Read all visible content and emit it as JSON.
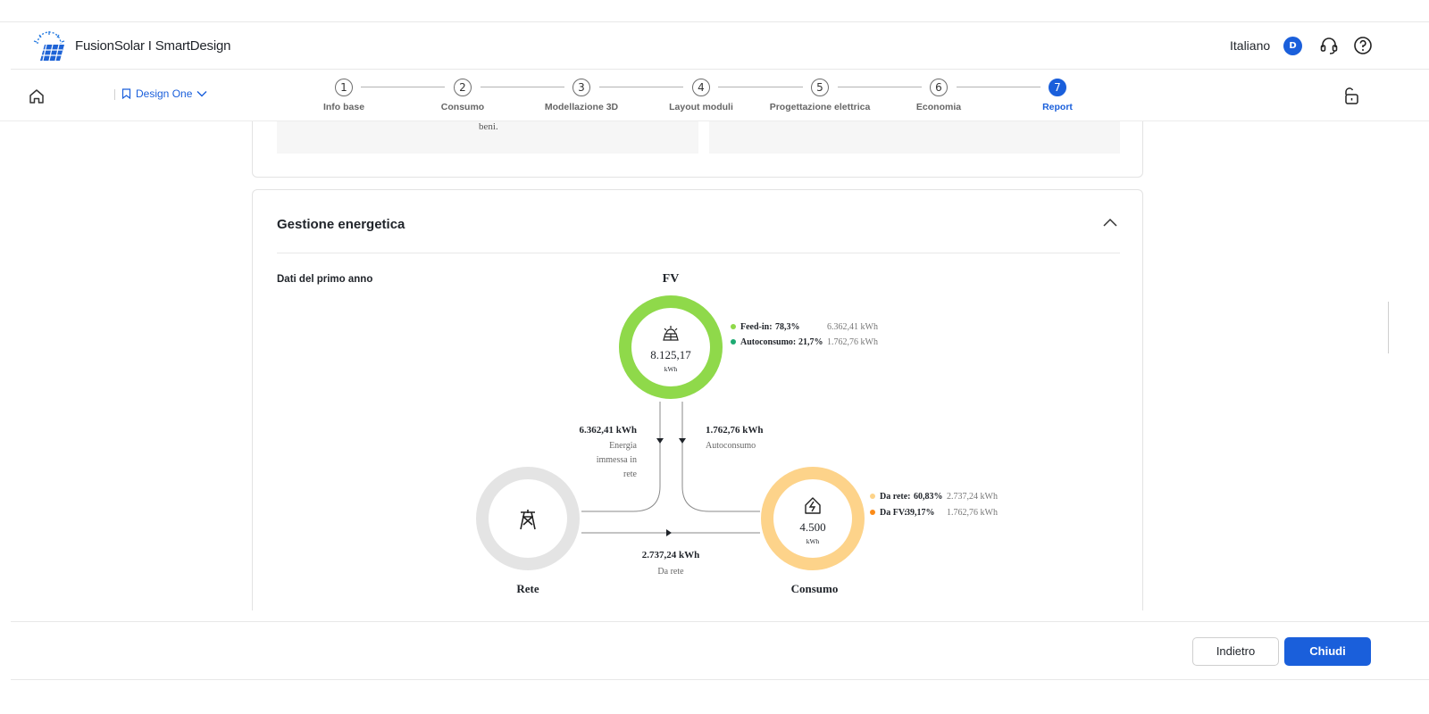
{
  "header": {
    "brand": "FusionSolar I SmartDesign",
    "language": "Italiano",
    "avatar_initial": "D"
  },
  "nav": {
    "design_name": "Design One",
    "steps": [
      {
        "number": "1",
        "label": "Info base"
      },
      {
        "number": "2",
        "label": "Consumo"
      },
      {
        "number": "3",
        "label": "Modellazione 3D"
      },
      {
        "number": "4",
        "label": "Layout moduli"
      },
      {
        "number": "5",
        "label": "Progettazione elettrica"
      },
      {
        "number": "6",
        "label": "Economia"
      },
      {
        "number": "7",
        "label": "Report"
      }
    ],
    "active_step": 7
  },
  "previous_card": {
    "text_fragment": "beni."
  },
  "energy_section": {
    "title": "Gestione energetica",
    "subtitle": "Dati del primo anno",
    "pv": {
      "title": "FV",
      "total": "8.125,17",
      "unit": "kWh",
      "legend": [
        {
          "label": "Feed-in:",
          "percent": "78,3%",
          "value": "6.362,41 kWh",
          "color": "#8fd94a"
        },
        {
          "label": "Autoconsumo:",
          "percent": "21,7%",
          "value": "1.762,76 kWh",
          "color": "#1daa72"
        }
      ],
      "share_feedin": 0.783
    },
    "flows": {
      "feed_in_value": "6.362,41 kWh",
      "feed_in_label_line1": "Energia",
      "feed_in_label_line2": "immessa in",
      "feed_in_label_line3": "rete",
      "self_value": "1.762,76 kWh",
      "self_label": "Autoconsumo",
      "grid_value": "2.737,24 kWh",
      "grid_label": "Da rete"
    },
    "grid": {
      "title": "Rete"
    },
    "consumption": {
      "title": "Consumo",
      "total": "4.500",
      "unit": "kWh",
      "legend": [
        {
          "label": "Da rete:",
          "percent": "60,83%",
          "value": "2.737,24 kWh",
          "color": "#fdd38a"
        },
        {
          "label": "Da FV:",
          "percent": "39,17%",
          "value": "1.762,76 kWh",
          "color": "#fb8b18"
        }
      ],
      "share_from_grid": 0.6083
    },
    "colors": {
      "pv_feedin": "#8fd94a",
      "pv_self": "#1daa72",
      "grid_ring": "#e4e4e4",
      "cons_grid": "#fdd38a",
      "cons_pv": "#fb8b18",
      "primary": "#1a5fdb"
    }
  },
  "footer": {
    "back_label": "Indietro",
    "close_label": "Chiudi"
  }
}
